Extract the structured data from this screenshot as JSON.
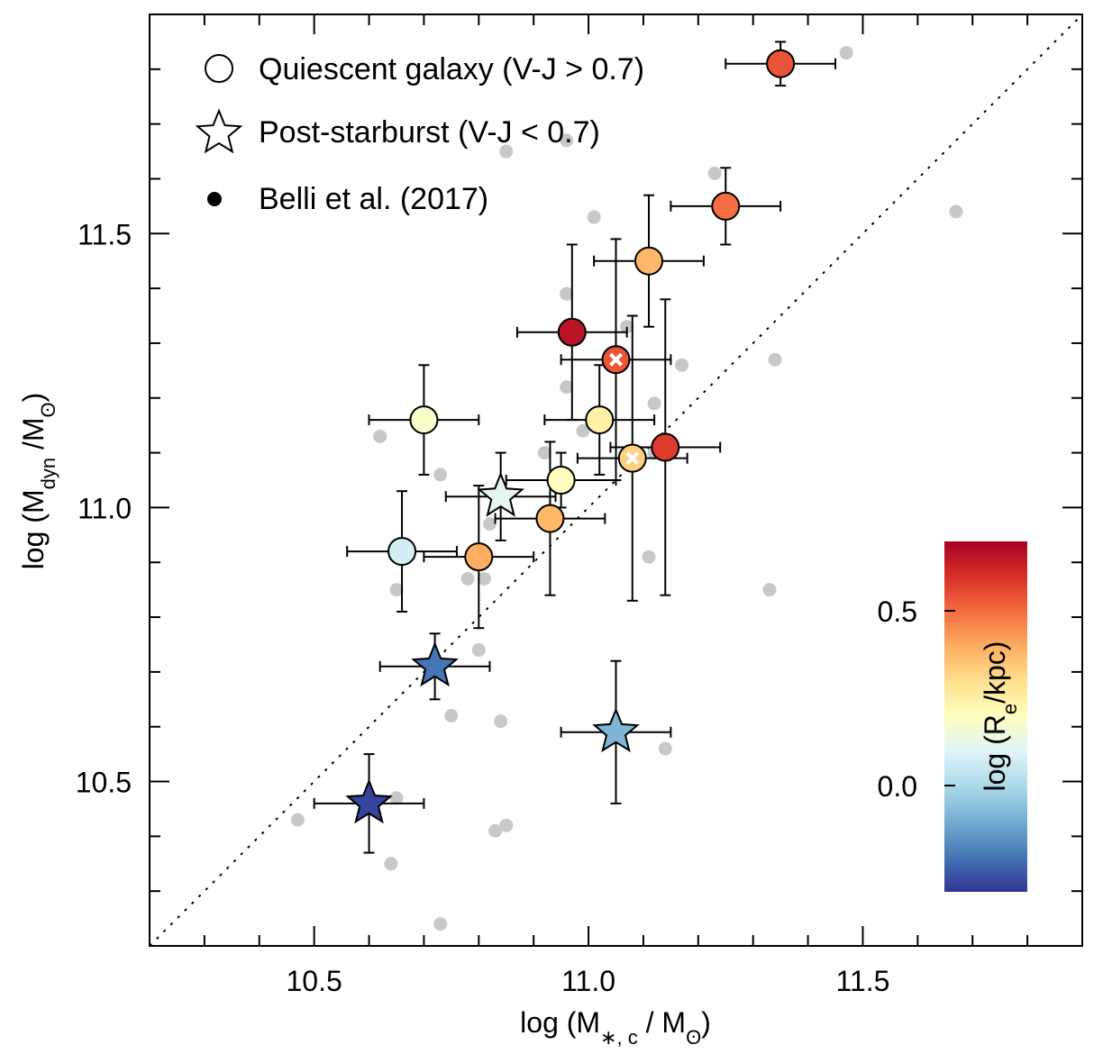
{
  "chart_data": {
    "type": "scatter",
    "xlabel": "log (M∗, c / Mʘ)",
    "xlabel_main": "log (M",
    "xlabel_sub": "∗, c",
    "xlabel_tail": " / M",
    "xlabel_sun": "ʘ",
    "xlabel_close": ")",
    "ylabel": "log (Mdyn /Mʘ)",
    "ylabel_main": "log (M",
    "ylabel_sub": "dyn",
    "ylabel_tail": " /M",
    "ylabel_sun": "ʘ",
    "ylabel_close": ")",
    "xlim": [
      10.2,
      11.9
    ],
    "ylim": [
      10.2,
      11.9
    ],
    "x_major_ticks": [
      10.5,
      11.0,
      11.5
    ],
    "x_tick_labels": [
      "10.5",
      "11.0",
      "11.5"
    ],
    "y_major_ticks": [
      10.5,
      11.0,
      11.5
    ],
    "y_tick_labels": [
      "10.5",
      "11.0",
      "11.5"
    ],
    "minor_tick_step": 0.1,
    "one_to_one_line": true,
    "grid": false,
    "legend_position": "top-left",
    "legend": [
      {
        "marker": "open-circle",
        "label": "Quiescent galaxy (V-J > 0.7)"
      },
      {
        "marker": "open-star",
        "label": "Post-starburst (V-J < 0.7)"
      },
      {
        "marker": "filled-dot",
        "label": "Belli et al. (2017)"
      }
    ],
    "colorbar": {
      "label": "log (Re/kpc)",
      "label_main": "log (R",
      "label_sub": "e",
      "label_tail": "/kpc)",
      "range": [
        -0.28,
        0.72
      ],
      "ticks": [
        0.0,
        0.5
      ],
      "tick_labels": [
        "0.0",
        "0.5"
      ],
      "colormap": [
        "#313695",
        "#4575b4",
        "#74add1",
        "#abd9e9",
        "#e0f3f8",
        "#ffffbf",
        "#fee090",
        "#fdae61",
        "#f46d43",
        "#d73027",
        "#a50026"
      ]
    },
    "comparison_points": [
      [
        11.47,
        11.83
      ],
      [
        11.67,
        11.54
      ],
      [
        10.85,
        11.65
      ],
      [
        10.96,
        11.67
      ],
      [
        11.01,
        11.53
      ],
      [
        11.23,
        11.61
      ],
      [
        10.96,
        11.39
      ],
      [
        11.07,
        11.33
      ],
      [
        11.17,
        11.26
      ],
      [
        11.34,
        11.27
      ],
      [
        10.96,
        11.22
      ],
      [
        11.12,
        11.19
      ],
      [
        10.62,
        11.13
      ],
      [
        10.73,
        11.06
      ],
      [
        10.99,
        11.14
      ],
      [
        10.92,
        11.1
      ],
      [
        11.12,
        11.1
      ],
      [
        10.82,
        10.97
      ],
      [
        10.78,
        10.87
      ],
      [
        10.81,
        10.87
      ],
      [
        10.65,
        10.85
      ],
      [
        11.11,
        10.91
      ],
      [
        11.33,
        10.85
      ],
      [
        10.8,
        10.74
      ],
      [
        10.75,
        10.62
      ],
      [
        10.84,
        10.61
      ],
      [
        11.14,
        10.56
      ],
      [
        10.47,
        10.43
      ],
      [
        10.65,
        10.47
      ],
      [
        10.83,
        10.41
      ],
      [
        10.85,
        10.42
      ],
      [
        10.64,
        10.35
      ],
      [
        10.73,
        10.24
      ]
    ],
    "series": [
      {
        "marker": "circle",
        "x": 11.35,
        "y": 11.81,
        "xerr": 0.1,
        "yerr": 0.04,
        "log_Re": 0.56,
        "cross": false
      },
      {
        "marker": "circle",
        "x": 11.25,
        "y": 11.55,
        "xerr": 0.1,
        "yerr": 0.07,
        "log_Re": 0.52,
        "cross": false
      },
      {
        "marker": "circle",
        "x": 11.11,
        "y": 11.45,
        "xerr": 0.1,
        "yerr": 0.12,
        "log_Re": 0.4,
        "cross": false
      },
      {
        "marker": "circle",
        "x": 10.97,
        "y": 11.32,
        "xerr": 0.1,
        "yerr": 0.16,
        "log_Re": 0.68,
        "cross": false
      },
      {
        "marker": "circle",
        "x": 11.05,
        "y": 11.27,
        "xerr": 0.1,
        "yerr": 0.22,
        "log_Re": 0.56,
        "cross": true
      },
      {
        "marker": "circle",
        "x": 10.7,
        "y": 11.16,
        "xerr": 0.1,
        "yerr": 0.1,
        "log_Re": 0.2,
        "cross": false
      },
      {
        "marker": "circle",
        "x": 11.02,
        "y": 11.16,
        "xerr": 0.1,
        "yerr": 0.1,
        "log_Re": 0.27,
        "cross": false
      },
      {
        "marker": "circle",
        "x": 11.14,
        "y": 11.11,
        "xerr": 0.1,
        "yerr": 0.27,
        "log_Re": 0.6,
        "cross": false
      },
      {
        "marker": "circle",
        "x": 11.08,
        "y": 11.09,
        "xerr": 0.1,
        "yerr": 0.26,
        "log_Re": 0.35,
        "cross": true
      },
      {
        "marker": "circle",
        "x": 10.95,
        "y": 11.05,
        "xerr": 0.1,
        "yerr": 0.05,
        "log_Re": 0.22,
        "cross": false
      },
      {
        "marker": "circle",
        "x": 10.93,
        "y": 10.98,
        "xerr": 0.1,
        "yerr": 0.14,
        "log_Re": 0.4,
        "cross": false
      },
      {
        "marker": "circle",
        "x": 10.66,
        "y": 10.92,
        "xerr": 0.1,
        "yerr": 0.11,
        "log_Re": 0.1,
        "cross": false
      },
      {
        "marker": "circle",
        "x": 10.8,
        "y": 10.91,
        "xerr": 0.1,
        "yerr": 0.13,
        "log_Re": 0.42,
        "cross": false
      },
      {
        "marker": "star",
        "x": 10.84,
        "y": 11.02,
        "xerr": 0.1,
        "yerr": 0.08,
        "log_Re": 0.14,
        "cross": false
      },
      {
        "marker": "star",
        "x": 10.72,
        "y": 10.71,
        "xerr": 0.1,
        "yerr": 0.06,
        "log_Re": -0.18,
        "cross": false
      },
      {
        "marker": "star",
        "x": 11.05,
        "y": 10.59,
        "xerr": 0.1,
        "yerr": 0.13,
        "log_Re": -0.06,
        "cross": false
      },
      {
        "marker": "star",
        "x": 10.6,
        "y": 10.46,
        "xerr": 0.1,
        "yerr": 0.09,
        "log_Re": -0.26,
        "cross": false
      }
    ]
  }
}
